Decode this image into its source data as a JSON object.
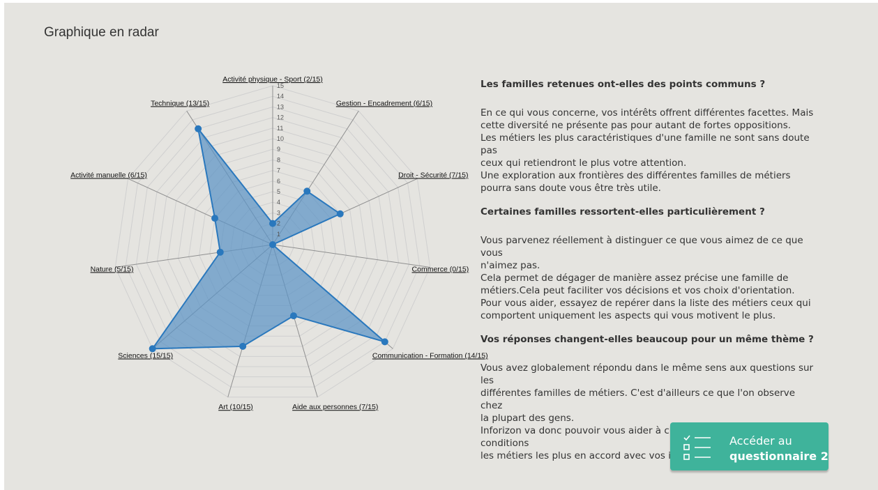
{
  "page": {
    "title": "Graphique en radar"
  },
  "chart_data": {
    "type": "radar",
    "max": 15,
    "ticks": [
      1,
      2,
      3,
      4,
      5,
      6,
      7,
      8,
      9,
      10,
      11,
      12,
      13,
      14,
      15
    ],
    "axes": [
      {
        "label": "Activité physique - Sport (2/15)",
        "value": 2
      },
      {
        "label": "Gestion - Encadrement (6/15)",
        "value": 6
      },
      {
        "label": "Droit - Sécurité (7/15)",
        "value": 7
      },
      {
        "label": "Commerce (0/15)",
        "value": 0
      },
      {
        "label": "Communication - Formation (14/15)",
        "value": 14
      },
      {
        "label": "Aide aux personnes (7/15)",
        "value": 7
      },
      {
        "label": "Art (10/15)",
        "value": 10
      },
      {
        "label": "Sciences (15/15)",
        "value": 15
      },
      {
        "label": "Nature (5/15)",
        "value": 5
      },
      {
        "label": "Activité manuelle (6/15)",
        "value": 6
      },
      {
        "label": "Technique (13/15)",
        "value": 13
      }
    ],
    "colors": {
      "fill": "#5b93c5",
      "stroke": "#2a78bd",
      "point": "#2a78bd",
      "grid": "#cfcfcf",
      "spoke": "#8f8f8f"
    }
  },
  "sections": [
    {
      "title": "Les familles retenues ont-elles des points communs ?",
      "lines": [
        "En ce qui vous concerne, vos intérêts offrent différentes facettes. Mais",
        "cette diversité ne présente pas pour autant de fortes oppositions.",
        "Les métiers les plus caractéristiques d'une famille ne sont sans doute pas",
        "ceux qui retiendront le plus votre attention.",
        "Une exploration aux frontières des différentes familles de métiers",
        "pourra sans doute vous être très utile."
      ]
    },
    {
      "title": "Certaines familles ressortent-elles particulièrement ?",
      "lines": [
        "Vous parvenez réellement à distinguer ce que vous aimez de ce que vous",
        "n'aimez pas.",
        "Cela permet de dégager de manière assez précise une famille de",
        "métiers.Cela peut faciliter vos décisions et vos choix d'orientation.",
        "Pour vous aider, essayez de repérer dans la liste des métiers ceux qui",
        "comportent uniquement les aspects qui vous motivent le plus."
      ]
    },
    {
      "title": "Vos réponses changent-elles beaucoup pour un même thème ?",
      "lines": [
        "Vous avez globalement répondu dans le même sens aux questions sur les",
        "différentes familles de métiers. C'est d'ailleurs ce que l'on observe chez",
        "la plupart des gens.",
        "Inforizon va donc pouvoir vous aider à cibler dans de bonnes conditions",
        "les métiers les plus en accord avec vos intérêts."
      ]
    }
  ],
  "cta": {
    "line1": "Accéder au",
    "line2": "questionnaire 2",
    "icon": "checklist-icon",
    "color": "#3fb39b"
  }
}
